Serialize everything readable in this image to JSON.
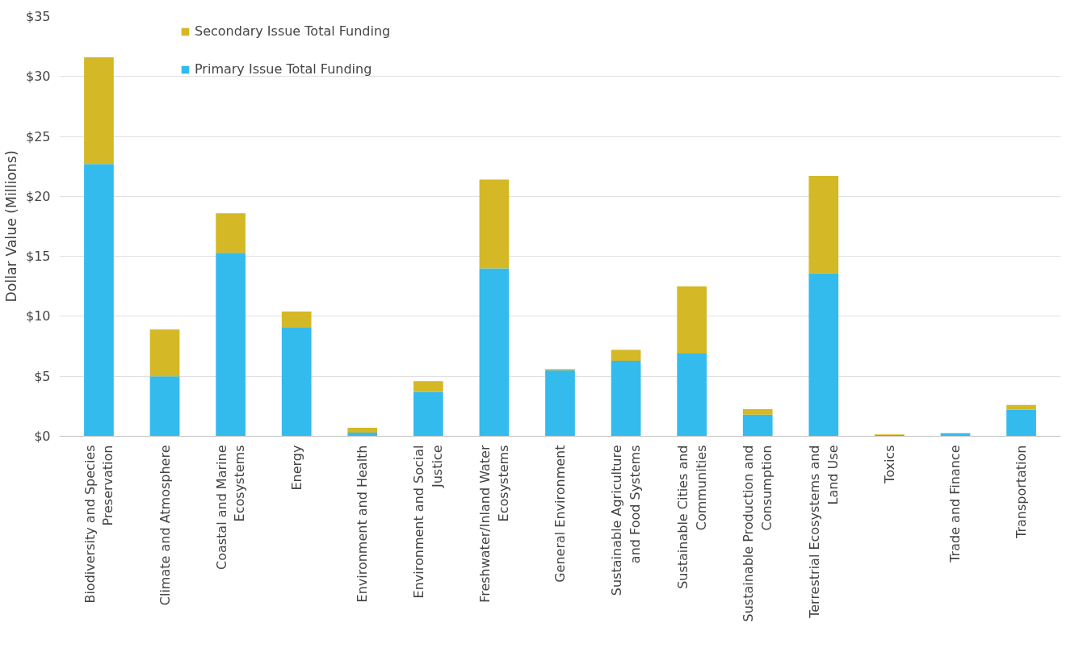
{
  "chart_data": {
    "type": "bar",
    "stacked": true,
    "ylabel": "Dollar Value (Millions)",
    "categories": [
      "Biodiversity and Species Preservation",
      "Climate and Atmosphere",
      "Coastal and Marine Ecosystems",
      "Energy",
      "Environment and Health",
      "Environment and Social Justice",
      "Freshwater/Inland Water Ecosystems",
      "General Environment",
      "Sustainable Agriculture and Food Systems",
      "Sustainable Cities and Communities",
      "Sustainable Production and Consumption",
      "Terrestrial Ecosystems and Land Use",
      "Toxics",
      "Trade and Finance",
      "Transportation"
    ],
    "series": [
      {
        "name": "Primary Issue Total Funding",
        "color": "#33bbee",
        "values": [
          22.7,
          5.0,
          15.3,
          9.1,
          0.3,
          3.7,
          14.0,
          5.5,
          6.3,
          6.9,
          1.8,
          13.6,
          0.1,
          0.25,
          2.2
        ]
      },
      {
        "name": "Secondary Issue Total Funding",
        "color": "#d4b826",
        "values": [
          8.9,
          3.9,
          3.3,
          1.3,
          0.4,
          0.9,
          7.4,
          0.1,
          0.9,
          5.6,
          0.45,
          8.1,
          0.05,
          0,
          0.4
        ]
      }
    ],
    "ylim": [
      0,
      35
    ],
    "yticks": [
      {
        "value": 0,
        "label": "$0"
      },
      {
        "value": 5,
        "label": "$5"
      },
      {
        "value": 10,
        "label": "$10"
      },
      {
        "value": 15,
        "label": "$15"
      },
      {
        "value": 20,
        "label": "$20"
      },
      {
        "value": 25,
        "label": "$25"
      },
      {
        "value": 30,
        "label": "$30"
      },
      {
        "value": 35,
        "label": "$35"
      }
    ],
    "grid": "y",
    "legend": "top left"
  }
}
